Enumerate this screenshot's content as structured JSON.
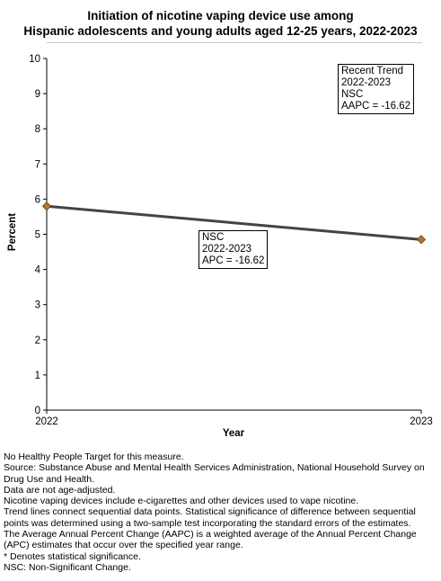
{
  "title_line1": "Initiation of nicotine vaping device use among",
  "title_line2": "Hispanic adolescents and young adults aged 12-25 years, 2022-2023",
  "chart_data": {
    "type": "line",
    "title": "Initiation of nicotine vaping device use among Hispanic adolescents and young adults aged 12-25 years, 2022-2023",
    "xlabel": "Year",
    "ylabel": "Percent",
    "categories": [
      "2022",
      "2023"
    ],
    "series": [
      {
        "values": [
          5.8,
          4.85
        ],
        "color": "#444444",
        "marker_color": "#b87333"
      }
    ],
    "ylim": [
      0,
      10
    ],
    "yticks": [
      "0",
      "1",
      "2",
      "3",
      "4",
      "5",
      "6",
      "7",
      "8",
      "9",
      "10"
    ],
    "grid": false
  },
  "recent_trend_box": {
    "line1": "Recent Trend",
    "line2": "2022-2023",
    "line3": "NSC",
    "line4": "AAPC = -16.62"
  },
  "segment_box": {
    "line1": "NSC",
    "line2": "2022-2023",
    "line3": "APC = -16.62"
  },
  "notes": [
    "No Healthy People Target for this measure.",
    "Source: Substance Abuse and Mental Health Services Administration, National Household Survey on Drug Use and Health.",
    "Data are not age-adjusted.",
    "Nicotine vaping devices include e-cigarettes and other devices used to vape nicotine.",
    "Trend lines connect sequential data points. Statistical significance of difference between sequential points was determined using a two-sample test incorporating the standard errors of the estimates.",
    "The Average Annual Percent Change (AAPC) is a weighted average of the Annual Percent Change (APC) estimates that occur over the specified year range.",
    "* Denotes statistical significance.",
    "NSC: Non-Significant Change."
  ]
}
